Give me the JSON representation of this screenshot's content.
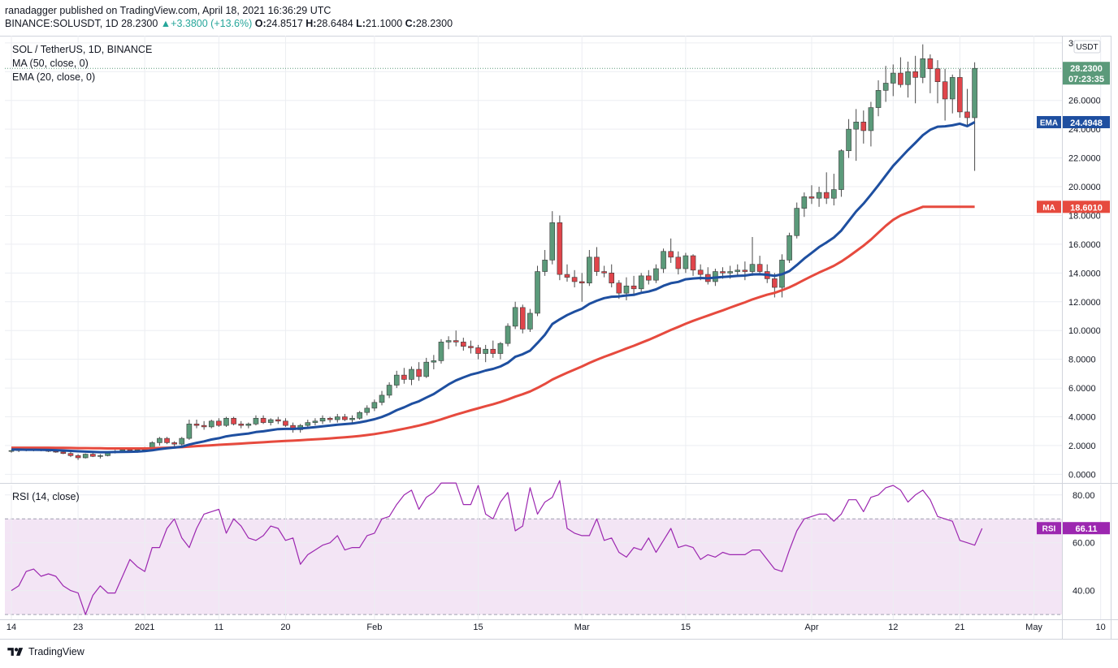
{
  "header": {
    "published": "ranadagger published on TradingView.com, April 18, 2021 16:36:29 UTC",
    "symbol": "BINANCE:SOLUSDT, 1D",
    "close_val": "28.2300",
    "change": "▲+3.3800 (+13.6%)",
    "open_label": "O:",
    "open_val": "24.8517",
    "high_label": "H:",
    "high_val": "28.6484",
    "low_label": "L:",
    "low_val": "21.1000",
    "close_label": "C:",
    "close_val2": "28.2300"
  },
  "legend": {
    "title": "SOL / TetherUS, 1D, BINANCE",
    "ma": "MA (50, close, 0)",
    "ema": "EMA (20, close, 0)",
    "rsi": "RSI (14, close)"
  },
  "footer": {
    "brand": "TradingView"
  },
  "colors": {
    "up": "#5b9a7a",
    "down": "#e0454b",
    "ema": "#1e4fa0",
    "ma": "#e64a3e",
    "rsi": "#9c27b0",
    "rsi_band": "#f3e5f5"
  },
  "chart_data": {
    "type": "candlestick",
    "currency_label": "USDT",
    "price_ticks": [
      "30.0000",
      "28.0000",
      "26.0000",
      "24.0000",
      "22.0000",
      "20.0000",
      "18.0000",
      "16.0000",
      "14.0000",
      "12.0000",
      "10.0000",
      "8.0000",
      "6.0000",
      "4.0000",
      "2.0000",
      "0.0000"
    ],
    "price_tick_values": [
      30,
      28,
      26,
      24,
      22,
      20,
      18,
      16,
      14,
      12,
      10,
      8,
      6,
      4,
      2,
      0
    ],
    "price_ylim": [
      -0.6,
      30.5
    ],
    "rsi_ticks": [
      "80.00",
      "60.00",
      "40.00"
    ],
    "rsi_tick_values": [
      80,
      60,
      40
    ],
    "rsi_ylim": [
      28,
      84
    ],
    "rsi_bands": [
      70,
      30
    ],
    "x_ticks": [
      "14",
      "23",
      "2021",
      "11",
      "20",
      "Feb",
      "15",
      "Mar",
      "15",
      "Apr",
      "12",
      "21",
      "May",
      "10"
    ],
    "x_tick_days": [
      0,
      9,
      18,
      28,
      37,
      49,
      63,
      77,
      91,
      108,
      119,
      128,
      138,
      147
    ],
    "last_price_label": "28.2300",
    "countdown": "07:23:35",
    "ema_label": "EMA",
    "ema_value": "24.4948",
    "ma_label": "MA",
    "ma_value": "18.6010",
    "rsi_label": "RSI",
    "rsi_value": "66.11",
    "candles": [
      [
        1.6,
        1.7,
        1.5,
        1.65
      ],
      [
        1.65,
        1.75,
        1.55,
        1.7
      ],
      [
        1.7,
        1.8,
        1.6,
        1.72
      ],
      [
        1.72,
        1.85,
        1.6,
        1.75
      ],
      [
        1.75,
        1.8,
        1.6,
        1.7
      ],
      [
        1.7,
        1.75,
        1.55,
        1.6
      ],
      [
        1.6,
        1.7,
        1.5,
        1.55
      ],
      [
        1.55,
        1.6,
        1.4,
        1.45
      ],
      [
        1.45,
        1.55,
        1.2,
        1.3
      ],
      [
        1.3,
        1.4,
        1.0,
        1.15
      ],
      [
        1.15,
        1.45,
        1.1,
        1.4
      ],
      [
        1.4,
        1.5,
        1.2,
        1.25
      ],
      [
        1.25,
        1.4,
        1.1,
        1.3
      ],
      [
        1.3,
        1.6,
        1.25,
        1.55
      ],
      [
        1.55,
        1.7,
        1.45,
        1.6
      ],
      [
        1.6,
        1.75,
        1.5,
        1.7
      ],
      [
        1.7,
        1.8,
        1.55,
        1.6
      ],
      [
        1.6,
        1.75,
        1.5,
        1.7
      ],
      [
        1.7,
        1.9,
        1.6,
        1.85
      ],
      [
        1.85,
        2.3,
        1.8,
        2.2
      ],
      [
        2.2,
        2.6,
        2.0,
        2.5
      ],
      [
        2.5,
        2.6,
        2.1,
        2.2
      ],
      [
        2.2,
        2.3,
        1.9,
        2.1
      ],
      [
        2.1,
        2.6,
        2.0,
        2.5
      ],
      [
        2.5,
        3.8,
        2.4,
        3.5
      ],
      [
        3.5,
        3.8,
        3.2,
        3.4
      ],
      [
        3.4,
        3.7,
        3.1,
        3.3
      ],
      [
        3.3,
        3.8,
        3.2,
        3.7
      ],
      [
        3.7,
        3.9,
        3.3,
        3.4
      ],
      [
        3.4,
        4.0,
        3.3,
        3.9
      ],
      [
        3.9,
        4.0,
        3.4,
        3.5
      ],
      [
        3.5,
        3.7,
        3.2,
        3.4
      ],
      [
        3.4,
        3.6,
        3.2,
        3.5
      ],
      [
        3.5,
        4.1,
        3.4,
        3.9
      ],
      [
        3.9,
        4.1,
        3.5,
        3.6
      ],
      [
        3.6,
        3.9,
        3.4,
        3.8
      ],
      [
        3.8,
        4.0,
        3.5,
        3.7
      ],
      [
        3.7,
        3.9,
        3.3,
        3.4
      ],
      [
        3.4,
        3.6,
        2.9,
        3.1
      ],
      [
        3.1,
        3.5,
        2.9,
        3.4
      ],
      [
        3.4,
        3.8,
        3.3,
        3.6
      ],
      [
        3.6,
        3.9,
        3.4,
        3.7
      ],
      [
        3.7,
        4.1,
        3.5,
        3.9
      ],
      [
        3.9,
        4.0,
        3.6,
        3.8
      ],
      [
        3.8,
        4.2,
        3.6,
        4.0
      ],
      [
        4.0,
        4.2,
        3.7,
        3.8
      ],
      [
        3.8,
        4.1,
        3.6,
        3.9
      ],
      [
        3.9,
        4.4,
        3.8,
        4.3
      ],
      [
        4.3,
        4.8,
        4.1,
        4.6
      ],
      [
        4.6,
        5.2,
        4.4,
        5.0
      ],
      [
        5.0,
        5.8,
        4.8,
        5.5
      ],
      [
        5.5,
        6.4,
        5.3,
        6.2
      ],
      [
        6.2,
        7.2,
        6.0,
        6.9
      ],
      [
        6.9,
        7.4,
        6.3,
        6.6
      ],
      [
        6.6,
        7.5,
        6.2,
        7.3
      ],
      [
        7.3,
        7.8,
        6.5,
        6.8
      ],
      [
        6.8,
        8.1,
        6.7,
        7.8
      ],
      [
        7.8,
        8.3,
        7.3,
        7.9
      ],
      [
        7.9,
        9.4,
        7.7,
        9.2
      ],
      [
        9.2,
        9.6,
        8.7,
        9.3
      ],
      [
        9.3,
        10.0,
        8.9,
        9.2
      ],
      [
        9.2,
        9.5,
        8.6,
        8.9
      ],
      [
        8.9,
        9.3,
        8.4,
        8.8
      ],
      [
        8.8,
        9.0,
        8.0,
        8.4
      ],
      [
        8.4,
        9.0,
        7.8,
        8.7
      ],
      [
        8.7,
        9.3,
        8.1,
        8.4
      ],
      [
        8.4,
        9.2,
        8.0,
        9.1
      ],
      [
        9.1,
        10.5,
        8.9,
        10.3
      ],
      [
        10.3,
        12.0,
        10.1,
        11.6
      ],
      [
        11.6,
        11.8,
        9.8,
        10.1
      ],
      [
        10.1,
        11.5,
        9.9,
        11.2
      ],
      [
        11.2,
        14.5,
        11.0,
        14.1
      ],
      [
        14.1,
        15.6,
        13.8,
        14.9
      ],
      [
        14.9,
        18.3,
        14.6,
        17.5
      ],
      [
        17.5,
        18.0,
        13.5,
        13.9
      ],
      [
        13.9,
        14.6,
        13.4,
        13.7
      ],
      [
        13.7,
        14.2,
        13.0,
        13.4
      ],
      [
        13.4,
        14.0,
        12.0,
        13.3
      ],
      [
        13.3,
        15.6,
        13.1,
        15.1
      ],
      [
        15.1,
        15.8,
        13.8,
        14.1
      ],
      [
        14.1,
        14.5,
        13.7,
        14.0
      ],
      [
        14.0,
        14.6,
        13.0,
        13.3
      ],
      [
        13.3,
        13.5,
        12.2,
        12.6
      ],
      [
        12.6,
        13.7,
        12.1,
        13.1
      ],
      [
        13.1,
        13.8,
        12.5,
        12.9
      ],
      [
        12.9,
        14.0,
        12.7,
        13.8
      ],
      [
        13.8,
        14.2,
        13.2,
        13.5
      ],
      [
        13.5,
        14.6,
        13.3,
        14.3
      ],
      [
        14.3,
        15.7,
        14.0,
        15.5
      ],
      [
        15.5,
        16.4,
        14.7,
        15.1
      ],
      [
        15.1,
        15.5,
        13.9,
        14.3
      ],
      [
        14.3,
        15.4,
        14.0,
        15.2
      ],
      [
        15.2,
        15.3,
        13.8,
        14.2
      ],
      [
        14.2,
        14.6,
        13.5,
        13.9
      ],
      [
        13.9,
        14.4,
        13.2,
        13.4
      ],
      [
        13.4,
        14.3,
        13.1,
        14.1
      ],
      [
        14.1,
        14.4,
        13.6,
        14.0
      ],
      [
        14.0,
        14.5,
        13.6,
        14.1
      ],
      [
        14.1,
        14.6,
        13.8,
        14.2
      ],
      [
        14.2,
        14.8,
        13.5,
        14.1
      ],
      [
        14.1,
        16.5,
        13.8,
        14.6
      ],
      [
        14.6,
        15.2,
        13.9,
        14.1
      ],
      [
        14.1,
        14.6,
        13.3,
        13.6
      ],
      [
        13.6,
        14.0,
        12.3,
        13.0
      ],
      [
        13.0,
        15.3,
        12.3,
        14.9
      ],
      [
        14.9,
        16.8,
        14.7,
        16.6
      ],
      [
        16.6,
        18.9,
        16.4,
        18.5
      ],
      [
        18.5,
        19.6,
        17.9,
        19.3
      ],
      [
        19.3,
        20.1,
        18.8,
        19.2
      ],
      [
        19.2,
        20.0,
        18.6,
        19.6
      ],
      [
        19.6,
        21.0,
        18.8,
        19.2
      ],
      [
        19.2,
        20.9,
        18.7,
        19.8
      ],
      [
        19.8,
        22.6,
        19.3,
        22.5
      ],
      [
        22.5,
        24.7,
        22.0,
        24.0
      ],
      [
        24.0,
        25.4,
        21.8,
        24.5
      ],
      [
        24.5,
        25.3,
        23.0,
        23.9
      ],
      [
        23.9,
        25.9,
        22.8,
        25.5
      ],
      [
        25.5,
        27.4,
        24.9,
        26.7
      ],
      [
        26.7,
        28.4,
        25.9,
        27.2
      ],
      [
        27.2,
        28.5,
        26.3,
        27.9
      ],
      [
        27.9,
        29.0,
        26.9,
        27.1
      ],
      [
        27.1,
        28.7,
        26.2,
        28.0
      ],
      [
        28.0,
        29.1,
        25.8,
        27.6
      ],
      [
        27.6,
        29.9,
        27.2,
        28.9
      ],
      [
        28.9,
        29.2,
        26.5,
        28.2
      ],
      [
        28.2,
        28.8,
        25.8,
        27.3
      ],
      [
        27.3,
        28.2,
        24.6,
        26.1
      ],
      [
        26.1,
        27.8,
        25.1,
        27.6
      ],
      [
        27.6,
        28.2,
        24.8,
        25.2
      ],
      [
        25.2,
        26.8,
        24.2,
        24.8
      ],
      [
        24.8,
        28.65,
        21.1,
        28.23
      ]
    ],
    "ema20": [
      1.72,
      1.72,
      1.71,
      1.71,
      1.7,
      1.69,
      1.68,
      1.66,
      1.63,
      1.6,
      1.58,
      1.56,
      1.54,
      1.54,
      1.55,
      1.56,
      1.57,
      1.58,
      1.61,
      1.67,
      1.75,
      1.81,
      1.86,
      1.92,
      2.07,
      2.19,
      2.29,
      2.42,
      2.51,
      2.64,
      2.72,
      2.78,
      2.84,
      2.94,
      2.99,
      3.07,
      3.14,
      3.16,
      3.16,
      3.19,
      3.23,
      3.28,
      3.34,
      3.39,
      3.45,
      3.49,
      3.53,
      3.61,
      3.71,
      3.83,
      3.99,
      4.2,
      4.46,
      4.66,
      4.9,
      5.08,
      5.34,
      5.58,
      5.92,
      6.25,
      6.53,
      6.74,
      6.93,
      7.06,
      7.22,
      7.33,
      7.5,
      7.76,
      8.17,
      8.35,
      8.6,
      9.13,
      9.7,
      10.45,
      10.78,
      11.07,
      11.31,
      11.51,
      11.85,
      12.07,
      12.25,
      12.35,
      12.37,
      12.44,
      12.48,
      12.62,
      12.71,
      12.86,
      13.11,
      13.29,
      13.38,
      13.56,
      13.62,
      13.65,
      13.63,
      13.68,
      13.72,
      13.76,
      13.8,
      13.82,
      13.9,
      13.91,
      13.88,
      13.8,
      13.91,
      14.13,
      14.55,
      15.0,
      15.4,
      15.8,
      16.12,
      16.47,
      16.95,
      17.62,
      18.28,
      18.82,
      19.45,
      20.1,
      20.78,
      21.45,
      22.0,
      22.55,
      23.05,
      23.58,
      23.96,
      24.17,
      24.2,
      24.27,
      24.38,
      24.21,
      24.49
    ],
    "ma50": [
      1.85,
      1.85,
      1.85,
      1.85,
      1.85,
      1.85,
      1.84,
      1.84,
      1.83,
      1.82,
      1.82,
      1.81,
      1.81,
      1.8,
      1.8,
      1.8,
      1.8,
      1.8,
      1.8,
      1.81,
      1.83,
      1.85,
      1.87,
      1.89,
      1.93,
      1.96,
      1.99,
      2.02,
      2.05,
      2.08,
      2.11,
      2.14,
      2.17,
      2.2,
      2.23,
      2.26,
      2.29,
      2.32,
      2.34,
      2.37,
      2.4,
      2.43,
      2.46,
      2.5,
      2.54,
      2.58,
      2.62,
      2.67,
      2.73,
      2.8,
      2.88,
      2.97,
      3.07,
      3.17,
      3.28,
      3.39,
      3.52,
      3.66,
      3.82,
      3.99,
      4.15,
      4.3,
      4.45,
      4.59,
      4.74,
      4.87,
      5.03,
      5.2,
      5.4,
      5.57,
      5.76,
      6.01,
      6.28,
      6.59,
      6.83,
      7.06,
      7.28,
      7.5,
      7.75,
      7.96,
      8.17,
      8.36,
      8.55,
      8.75,
      8.94,
      9.15,
      9.35,
      9.57,
      9.81,
      10.04,
      10.25,
      10.47,
      10.67,
      10.86,
      11.04,
      11.22,
      11.4,
      11.59,
      11.78,
      11.96,
      12.16,
      12.33,
      12.49,
      12.62,
      12.8,
      13.0,
      13.25,
      13.52,
      13.78,
      14.03,
      14.26,
      14.5,
      14.8,
      15.15,
      15.52,
      15.9,
      16.32,
      16.8,
      17.28,
      17.7,
      18.0,
      18.2,
      18.4,
      18.6,
      18.6,
      18.6,
      18.6,
      18.6,
      18.6,
      18.6,
      18.6
    ],
    "rsi": [
      40,
      42,
      48,
      49,
      46,
      47,
      46,
      42,
      40,
      39,
      30,
      38,
      42,
      39,
      39,
      46,
      53,
      50,
      48,
      58,
      58,
      66,
      70,
      62,
      58,
      66,
      72,
      73,
      74,
      64,
      70,
      67,
      62,
      61,
      63,
      67,
      66,
      61,
      62,
      51,
      55,
      57,
      59,
      60,
      63,
      57,
      58,
      58,
      63,
      64,
      70,
      71,
      76,
      80,
      82,
      74,
      79,
      81,
      85,
      85,
      85,
      76,
      76,
      84,
      72,
      70,
      77,
      81,
      65,
      67,
      83,
      72,
      77,
      79,
      86,
      66,
      64,
      63,
      63,
      70,
      61,
      62,
      56,
      54,
      58,
      57,
      62,
      56,
      61,
      66,
      58,
      59,
      58,
      53,
      55,
      54,
      56,
      55,
      55,
      55,
      57,
      57,
      53,
      49,
      48,
      57,
      65,
      70,
      71,
      72,
      72,
      69,
      72,
      78,
      78,
      73,
      79,
      80,
      83,
      84,
      82,
      77,
      80,
      82,
      78,
      71,
      70,
      69,
      61,
      60,
      59,
      66
    ]
  }
}
